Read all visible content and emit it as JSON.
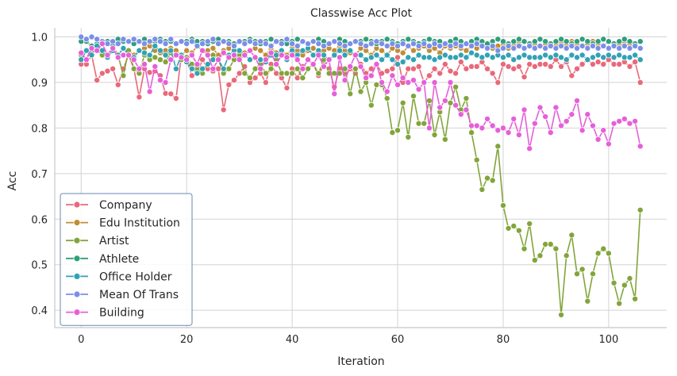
{
  "chart_data": {
    "type": "line",
    "title": "Classwise Acc Plot",
    "xlabel": "Iteration",
    "ylabel": "Acc",
    "xlim": [
      -5,
      111
    ],
    "ylim": [
      0.362,
      1.02
    ],
    "xticks": [
      0,
      20,
      40,
      60,
      80,
      100
    ],
    "yticks": [
      0.4,
      0.5,
      0.6,
      0.7,
      0.8,
      0.9,
      1.0
    ],
    "ytick_labels": [
      "0.4",
      "0.5",
      "0.6",
      "0.7",
      "0.8",
      "0.9",
      "1.0"
    ],
    "grid": true,
    "legend_position": "lower-left",
    "x": [
      0,
      1,
      2,
      3,
      4,
      5,
      6,
      7,
      8,
      9,
      10,
      11,
      12,
      13,
      14,
      15,
      16,
      17,
      18,
      19,
      20,
      21,
      22,
      23,
      24,
      25,
      26,
      27,
      28,
      29,
      30,
      31,
      32,
      33,
      34,
      35,
      36,
      37,
      38,
      39,
      40,
      41,
      42,
      43,
      44,
      45,
      46,
      47,
      48,
      49,
      50,
      51,
      52,
      53,
      54,
      55,
      56,
      57,
      58,
      59,
      60,
      61,
      62,
      63,
      64,
      65,
      66,
      67,
      68,
      69,
      70,
      71,
      72,
      73,
      74,
      75,
      76,
      77,
      78,
      79,
      80,
      81,
      82,
      83,
      84,
      85,
      86,
      87,
      88,
      89,
      90,
      91,
      92,
      93,
      94,
      95,
      96,
      97,
      98,
      99,
      100,
      101,
      102,
      103,
      104,
      105,
      106
    ],
    "series": [
      {
        "name": "Company",
        "color": "#e8697a",
        "values": [
          0.94,
          0.94,
          0.96,
          0.905,
          0.92,
          0.925,
          0.93,
          0.895,
          0.93,
          0.96,
          0.93,
          0.868,
          0.93,
          0.922,
          0.925,
          0.915,
          0.876,
          0.875,
          0.865,
          0.96,
          0.95,
          0.915,
          0.92,
          0.95,
          0.93,
          0.925,
          0.93,
          0.84,
          0.895,
          0.905,
          0.92,
          0.935,
          0.9,
          0.91,
          0.92,
          0.9,
          0.94,
          0.92,
          0.91,
          0.888,
          0.93,
          0.91,
          0.935,
          0.93,
          0.94,
          0.915,
          0.94,
          0.93,
          0.89,
          0.93,
          0.92,
          0.93,
          0.92,
          0.94,
          0.92,
          0.93,
          0.94,
          0.92,
          0.925,
          0.93,
          0.955,
          0.9,
          0.93,
          0.93,
          0.935,
          0.9,
          0.915,
          0.93,
          0.92,
          0.94,
          0.925,
          0.92,
          0.945,
          0.93,
          0.935,
          0.935,
          0.945,
          0.93,
          0.92,
          0.9,
          0.94,
          0.935,
          0.93,
          0.935,
          0.912,
          0.94,
          0.935,
          0.94,
          0.94,
          0.935,
          0.95,
          0.935,
          0.945,
          0.915,
          0.93,
          0.94,
          0.95,
          0.94,
          0.945,
          0.94,
          0.95,
          0.94,
          0.94,
          0.945,
          0.935,
          0.945,
          0.9
        ]
      },
      {
        "name": "Edu Institution",
        "color": "#c18d35",
        "values": [
          0.96,
          0.97,
          0.97,
          0.975,
          0.97,
          0.96,
          0.98,
          0.96,
          0.975,
          0.97,
          0.96,
          0.97,
          0.975,
          0.98,
          0.97,
          0.965,
          0.97,
          0.975,
          0.97,
          0.96,
          0.97,
          0.965,
          0.98,
          0.97,
          0.97,
          0.975,
          0.96,
          0.97,
          0.975,
          0.975,
          0.96,
          0.965,
          0.97,
          0.975,
          0.97,
          0.96,
          0.975,
          0.965,
          0.97,
          0.96,
          0.975,
          0.97,
          0.96,
          0.97,
          0.975,
          0.965,
          0.97,
          0.975,
          0.97,
          0.98,
          0.97,
          0.965,
          0.96,
          0.975,
          0.97,
          0.96,
          0.975,
          0.97,
          0.96,
          0.975,
          0.97,
          0.965,
          0.98,
          0.97,
          0.975,
          0.98,
          0.97,
          0.975,
          0.965,
          0.98,
          0.975,
          0.98,
          0.975,
          0.97,
          0.98,
          0.975,
          0.98,
          0.985,
          0.975,
          0.98,
          0.985,
          0.975,
          0.98,
          0.99,
          0.975,
          0.98,
          0.985,
          0.98,
          0.985,
          0.985,
          0.98,
          0.99,
          0.98,
          0.99,
          0.985,
          0.98,
          0.985,
          0.99,
          0.985,
          0.98,
          0.99,
          0.98,
          0.985,
          0.99,
          0.985,
          0.98,
          0.99
        ]
      },
      {
        "name": "Artist",
        "color": "#82a53a",
        "values": [
          0.96,
          0.95,
          0.98,
          0.97,
          0.96,
          0.955,
          0.97,
          0.96,
          0.915,
          0.97,
          0.93,
          0.92,
          0.96,
          0.95,
          0.955,
          0.95,
          0.945,
          0.965,
          0.96,
          0.95,
          0.955,
          0.94,
          0.93,
          0.92,
          0.94,
          0.96,
          0.95,
          0.92,
          0.93,
          0.95,
          0.96,
          0.92,
          0.91,
          0.93,
          0.94,
          0.92,
          0.93,
          0.95,
          0.92,
          0.92,
          0.92,
          0.93,
          0.91,
          0.93,
          0.94,
          0.92,
          0.95,
          0.92,
          0.92,
          0.92,
          0.93,
          0.875,
          0.93,
          0.88,
          0.9,
          0.85,
          0.895,
          0.895,
          0.865,
          0.79,
          0.795,
          0.855,
          0.78,
          0.87,
          0.81,
          0.81,
          0.86,
          0.785,
          0.835,
          0.775,
          0.855,
          0.89,
          0.84,
          0.865,
          0.79,
          0.73,
          0.665,
          0.69,
          0.685,
          0.76,
          0.63,
          0.58,
          0.585,
          0.575,
          0.535,
          0.59,
          0.51,
          0.52,
          0.545,
          0.545,
          0.535,
          0.39,
          0.52,
          0.565,
          0.48,
          0.49,
          0.42,
          0.48,
          0.525,
          0.535,
          0.525,
          0.46,
          0.415,
          0.455,
          0.47,
          0.425,
          0.62
        ]
      },
      {
        "name": "Athlete",
        "color": "#2f9e7a",
        "values": [
          0.99,
          0.99,
          0.98,
          0.985,
          0.99,
          0.99,
          0.98,
          0.995,
          0.99,
          0.99,
          0.985,
          0.99,
          0.995,
          0.99,
          0.99,
          0.995,
          0.99,
          0.99,
          0.985,
          0.99,
          0.99,
          0.995,
          0.99,
          0.99,
          0.985,
          0.99,
          0.995,
          0.99,
          0.99,
          0.985,
          0.99,
          0.99,
          0.995,
          0.99,
          0.985,
          0.99,
          0.995,
          0.99,
          0.99,
          0.985,
          0.99,
          0.995,
          0.99,
          0.985,
          0.99,
          0.995,
          0.99,
          0.985,
          0.99,
          0.995,
          0.99,
          0.985,
          0.99,
          0.99,
          0.995,
          0.99,
          0.985,
          0.99,
          0.995,
          0.99,
          0.985,
          0.99,
          0.995,
          0.99,
          0.985,
          0.99,
          0.995,
          0.99,
          0.99,
          0.985,
          0.99,
          0.995,
          0.99,
          0.985,
          0.99,
          0.995,
          0.99,
          0.985,
          0.99,
          0.995,
          0.99,
          0.985,
          0.99,
          0.995,
          0.99,
          0.985,
          0.99,
          0.995,
          0.99,
          0.985,
          0.99,
          0.995,
          0.99,
          0.985,
          0.99,
          0.995,
          0.99,
          0.985,
          0.99,
          0.995,
          0.99,
          0.985,
          0.99,
          0.995,
          0.99,
          0.985,
          0.99
        ]
      },
      {
        "name": "Office Holder",
        "color": "#32a2b5",
        "values": [
          0.95,
          0.97,
          0.96,
          0.98,
          0.97,
          0.955,
          0.97,
          0.96,
          0.975,
          0.96,
          0.955,
          0.97,
          0.965,
          0.96,
          0.98,
          0.97,
          0.96,
          0.97,
          0.93,
          0.96,
          0.945,
          0.93,
          0.92,
          0.93,
          0.94,
          0.95,
          0.95,
          0.93,
          0.96,
          0.97,
          0.97,
          0.96,
          0.95,
          0.955,
          0.95,
          0.945,
          0.96,
          0.96,
          0.97,
          0.95,
          0.97,
          0.96,
          0.97,
          0.975,
          0.96,
          0.97,
          0.96,
          0.95,
          0.96,
          0.97,
          0.96,
          0.97,
          0.96,
          0.96,
          0.95,
          0.955,
          0.96,
          0.95,
          0.96,
          0.95,
          0.94,
          0.945,
          0.955,
          0.95,
          0.96,
          0.955,
          0.955,
          0.95,
          0.955,
          0.96,
          0.955,
          0.955,
          0.96,
          0.955,
          0.965,
          0.96,
          0.955,
          0.96,
          0.955,
          0.96,
          0.955,
          0.96,
          0.95,
          0.955,
          0.96,
          0.955,
          0.955,
          0.955,
          0.96,
          0.955,
          0.96,
          0.955,
          0.95,
          0.96,
          0.955,
          0.96,
          0.95,
          0.955,
          0.96,
          0.955,
          0.96,
          0.955,
          0.96,
          0.955,
          0.955,
          0.96,
          0.95
        ]
      },
      {
        "name": "Mean Of Trans",
        "color": "#7b8fe8",
        "values": [
          1.0,
          0.995,
          1.0,
          0.995,
          0.99,
          0.985,
          0.99,
          0.985,
          0.995,
          0.99,
          0.995,
          0.99,
          0.985,
          0.99,
          0.995,
          0.99,
          0.985,
          0.995,
          0.985,
          0.99,
          0.985,
          0.99,
          0.98,
          0.985,
          0.99,
          0.995,
          0.985,
          0.99,
          0.985,
          0.98,
          0.99,
          0.985,
          0.99,
          0.985,
          0.99,
          0.985,
          0.98,
          0.99,
          0.985,
          0.995,
          0.985,
          0.98,
          0.99,
          0.985,
          0.99,
          0.985,
          0.98,
          0.985,
          0.99,
          0.985,
          0.98,
          0.985,
          0.99,
          0.985,
          0.98,
          0.985,
          0.99,
          0.985,
          0.98,
          0.985,
          0.98,
          0.985,
          0.98,
          0.985,
          0.98,
          0.985,
          0.98,
          0.985,
          0.98,
          0.985,
          0.98,
          0.985,
          0.98,
          0.985,
          0.98,
          0.985,
          0.98,
          0.975,
          0.98,
          0.97,
          0.975,
          0.98,
          0.975,
          0.98,
          0.975,
          0.98,
          0.975,
          0.98,
          0.975,
          0.98,
          0.975,
          0.98,
          0.975,
          0.98,
          0.975,
          0.98,
          0.975,
          0.98,
          0.975,
          0.98,
          0.975,
          0.98,
          0.975,
          0.98,
          0.975,
          0.98,
          0.975
        ]
      },
      {
        "name": "Building",
        "color": "#e65fd9",
        "values": [
          0.965,
          0.95,
          0.975,
          0.97,
          0.985,
          0.96,
          0.975,
          0.955,
          0.96,
          0.96,
          0.95,
          0.93,
          0.94,
          0.88,
          0.935,
          0.905,
          0.9,
          0.95,
          0.96,
          0.955,
          0.95,
          0.96,
          0.94,
          0.97,
          0.96,
          0.93,
          0.95,
          0.965,
          0.955,
          0.96,
          0.95,
          0.96,
          0.97,
          0.955,
          0.93,
          0.95,
          0.965,
          0.94,
          0.96,
          0.955,
          0.96,
          0.95,
          0.93,
          0.95,
          0.94,
          0.96,
          0.935,
          0.95,
          0.875,
          0.955,
          0.905,
          0.935,
          0.96,
          0.935,
          0.91,
          0.915,
          0.94,
          0.9,
          0.88,
          0.915,
          0.895,
          0.91,
          0.9,
          0.905,
          0.885,
          0.9,
          0.8,
          0.9,
          0.845,
          0.86,
          0.9,
          0.85,
          0.83,
          0.84,
          0.805,
          0.805,
          0.8,
          0.82,
          0.805,
          0.795,
          0.8,
          0.79,
          0.82,
          0.785,
          0.84,
          0.755,
          0.81,
          0.845,
          0.825,
          0.79,
          0.845,
          0.805,
          0.815,
          0.83,
          0.86,
          0.795,
          0.83,
          0.805,
          0.775,
          0.795,
          0.765,
          0.81,
          0.815,
          0.82,
          0.81,
          0.815,
          0.76
        ]
      }
    ]
  }
}
